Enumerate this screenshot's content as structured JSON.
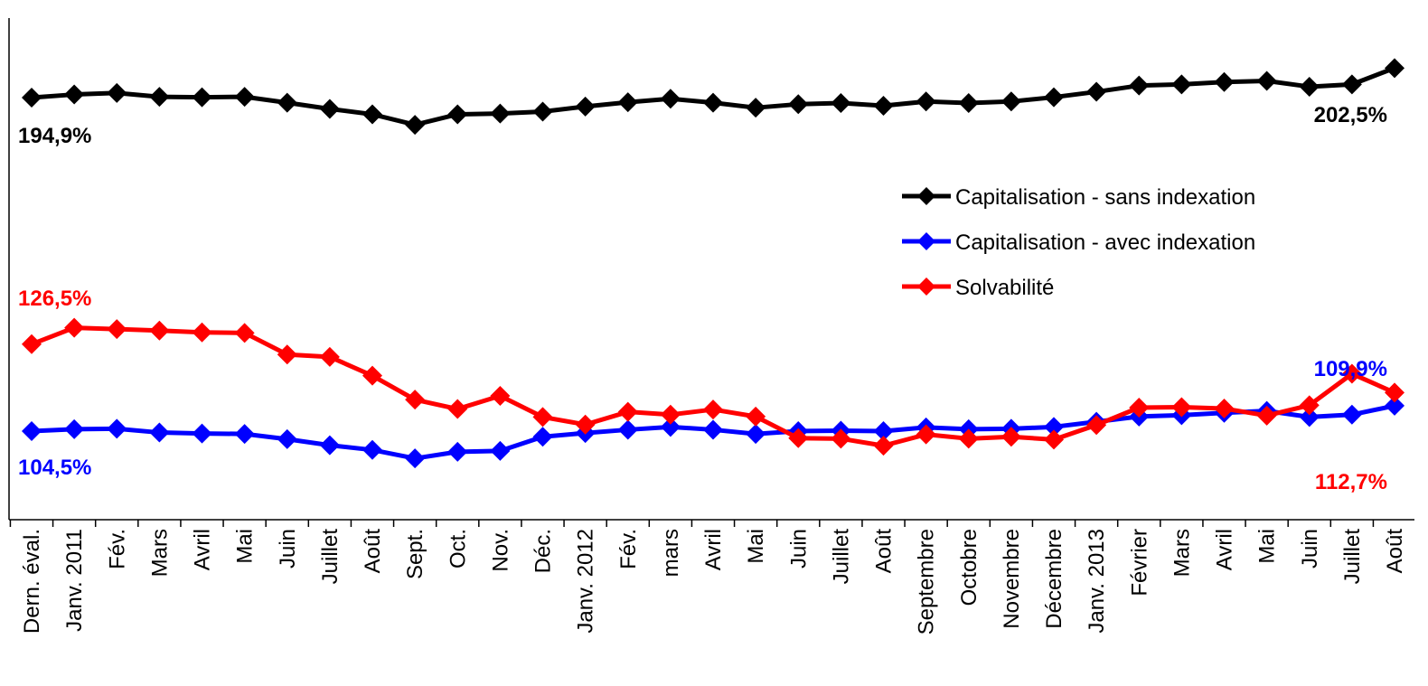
{
  "chart_data": {
    "type": "line",
    "categories": [
      "Dern. éval.",
      "Janv. 2011",
      "Fév.",
      "Mars",
      "Avril",
      "Mai",
      "Juin",
      "Juillet",
      "Août",
      "Sept.",
      "Oct.",
      "Nov.",
      "Déc.",
      "Janv. 2012",
      "Fév.",
      "mars",
      "Avril",
      "Mai",
      "Juin",
      "Juillet",
      "Août",
      "Septembre",
      "Octobre",
      "Novembre",
      "Décembre",
      "Janv. 2013",
      "Février",
      "Mars",
      "Avril",
      "Mai",
      "Juin",
      "Juillet",
      "Août"
    ],
    "series": [
      {
        "name": "Capitalisation - sans indexation",
        "color": "#000000",
        "values": [
          194.9,
          195.7,
          196.1,
          195.1,
          195.0,
          195.1,
          193.6,
          192.0,
          190.6,
          187.9,
          190.6,
          190.8,
          191.3,
          192.6,
          193.7,
          194.6,
          193.6,
          192.3,
          193.2,
          193.5,
          192.8,
          193.9,
          193.5,
          193.9,
          195.0,
          196.4,
          198.0,
          198.3,
          198.9,
          199.2,
          197.7,
          198.3,
          202.5
        ]
      },
      {
        "name": "Capitalisation - avec indexation",
        "color": "#0000ff",
        "values": [
          104.5,
          104.9,
          105.0,
          104.2,
          104.0,
          103.9,
          102.8,
          101.5,
          100.5,
          98.7,
          100.1,
          100.3,
          103.3,
          104.1,
          104.8,
          105.4,
          104.8,
          103.9,
          104.5,
          104.6,
          104.5,
          105.3,
          104.9,
          105.0,
          105.4,
          106.5,
          107.6,
          107.9,
          108.4,
          108.8,
          107.5,
          108.0,
          109.9
        ]
      },
      {
        "name": "Solvabilité",
        "color": "#ff0000",
        "values": [
          123.0,
          126.5,
          126.2,
          125.9,
          125.5,
          125.4,
          120.8,
          120.3,
          116.3,
          111.2,
          109.2,
          112.0,
          107.5,
          105.9,
          108.6,
          108.0,
          109.1,
          107.6,
          103.0,
          102.9,
          101.4,
          103.8,
          102.9,
          103.3,
          102.7,
          105.8,
          109.5,
          109.6,
          109.3,
          107.8,
          110.0,
          116.7,
          112.7
        ]
      }
    ],
    "data_labels": [
      {
        "text": "194,9%",
        "color": "#000000"
      },
      {
        "text": "202,5%",
        "color": "#000000"
      },
      {
        "text": "126,5%",
        "color": "#ff0000"
      },
      {
        "text": "104,5%",
        "color": "#0000ff"
      },
      {
        "text": "109,9%",
        "color": "#0000ff"
      },
      {
        "text": "112,7%",
        "color": "#ff0000"
      }
    ],
    "legend_position": "right",
    "grid": false,
    "marker": "diamond"
  }
}
